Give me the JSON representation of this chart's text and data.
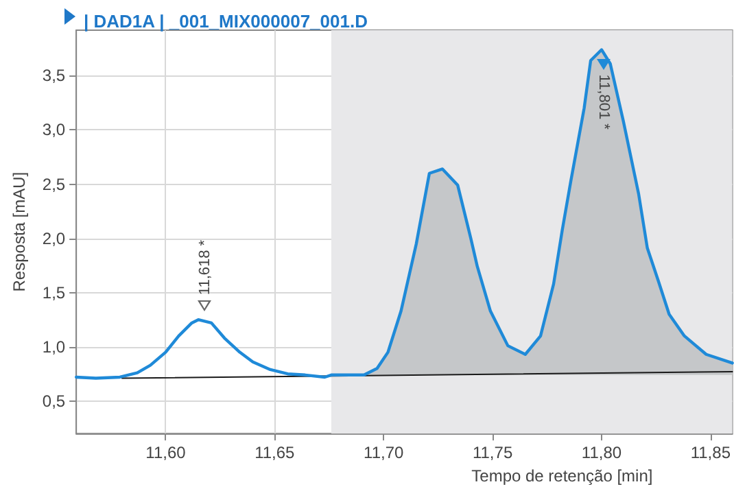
{
  "chart_data": {
    "type": "line",
    "title": "| DAD1A | _001_MIX000007_001.D",
    "xlabel": "Tempo de retenção [min]",
    "ylabel": "Resposta [mAU]",
    "xlim": [
      11.559,
      11.86
    ],
    "ylim": [
      0.2,
      3.92
    ],
    "xticks": [
      {
        "value": 11.6,
        "label": "11,60"
      },
      {
        "value": 11.65,
        "label": "11,65"
      },
      {
        "value": 11.7,
        "label": "11,70"
      },
      {
        "value": 11.75,
        "label": "11,75"
      },
      {
        "value": 11.8,
        "label": "11,80"
      },
      {
        "value": 11.85,
        "label": "11,85"
      }
    ],
    "yticks": [
      {
        "value": 0.5,
        "label": "0,5"
      },
      {
        "value": 1.0,
        "label": "1,0"
      },
      {
        "value": 1.5,
        "label": "1,5"
      },
      {
        "value": 2.0,
        "label": "2,0"
      },
      {
        "value": 2.5,
        "label": "2,5"
      },
      {
        "value": 3.0,
        "label": "3,0"
      },
      {
        "value": 3.5,
        "label": "3,5"
      }
    ],
    "grid": true,
    "marker": "none",
    "line_style": "solid",
    "series": [
      {
        "color": "#1f8ad8",
        "x": [
          11.559,
          11.568,
          11.579,
          11.587,
          11.593,
          11.6,
          11.606,
          11.612,
          11.615,
          11.621,
          11.627,
          11.634,
          11.64,
          11.648,
          11.656,
          11.664,
          11.673,
          11.676,
          11.691,
          11.697,
          11.702,
          11.708,
          11.715,
          11.721,
          11.727,
          11.734,
          11.74,
          11.743,
          11.749,
          11.757,
          11.765,
          11.772,
          11.778,
          11.782,
          11.786,
          11.792,
          11.795,
          11.8,
          11.804,
          11.81,
          11.817,
          11.821,
          11.826,
          11.831,
          11.838,
          11.848,
          11.86
        ],
        "values": [
          0.72,
          0.71,
          0.72,
          0.76,
          0.83,
          0.95,
          1.1,
          1.22,
          1.25,
          1.22,
          1.08,
          0.95,
          0.86,
          0.79,
          0.75,
          0.74,
          0.72,
          0.74,
          0.74,
          0.8,
          0.95,
          1.33,
          1.95,
          2.6,
          2.64,
          2.49,
          2.0,
          1.74,
          1.33,
          1.01,
          0.93,
          1.1,
          1.58,
          2.08,
          2.54,
          3.2,
          3.64,
          3.74,
          3.61,
          3.08,
          2.41,
          1.91,
          1.61,
          1.3,
          1.1,
          0.93,
          0.85
        ]
      },
      {
        "type": "area",
        "color": "#c5c7c9",
        "x": [
          11.676,
          11.691,
          11.697,
          11.702,
          11.708,
          11.715,
          11.721,
          11.727,
          11.734,
          11.74,
          11.743,
          11.749,
          11.757,
          11.765,
          11.772,
          11.778,
          11.782,
          11.786,
          11.792,
          11.795,
          11.8,
          11.804,
          11.81,
          11.817,
          11.821,
          11.826,
          11.831,
          11.838,
          11.848,
          11.86
        ],
        "values": [
          0.74,
          0.74,
          0.8,
          0.95,
          1.33,
          1.95,
          2.6,
          2.64,
          2.49,
          2.0,
          1.74,
          1.33,
          1.01,
          0.93,
          1.1,
          1.58,
          2.08,
          2.54,
          3.2,
          3.64,
          3.74,
          3.61,
          3.08,
          2.41,
          1.91,
          1.61,
          1.3,
          1.1,
          0.93,
          0.85
        ]
      },
      {
        "type": "line",
        "color": "#1a1a1a",
        "x": [
          11.58,
          11.86
        ],
        "values": [
          0.71,
          0.77
        ]
      }
    ],
    "bands": [
      {
        "axis": "x",
        "from": 11.676,
        "to": 11.86,
        "color": "#e8e8ea"
      }
    ],
    "annotations": [
      {
        "text": "11,618 *",
        "x": 11.618,
        "y": 1.25
      },
      {
        "text": "11,801 *",
        "x": 11.801,
        "y": 3.74
      }
    ]
  }
}
